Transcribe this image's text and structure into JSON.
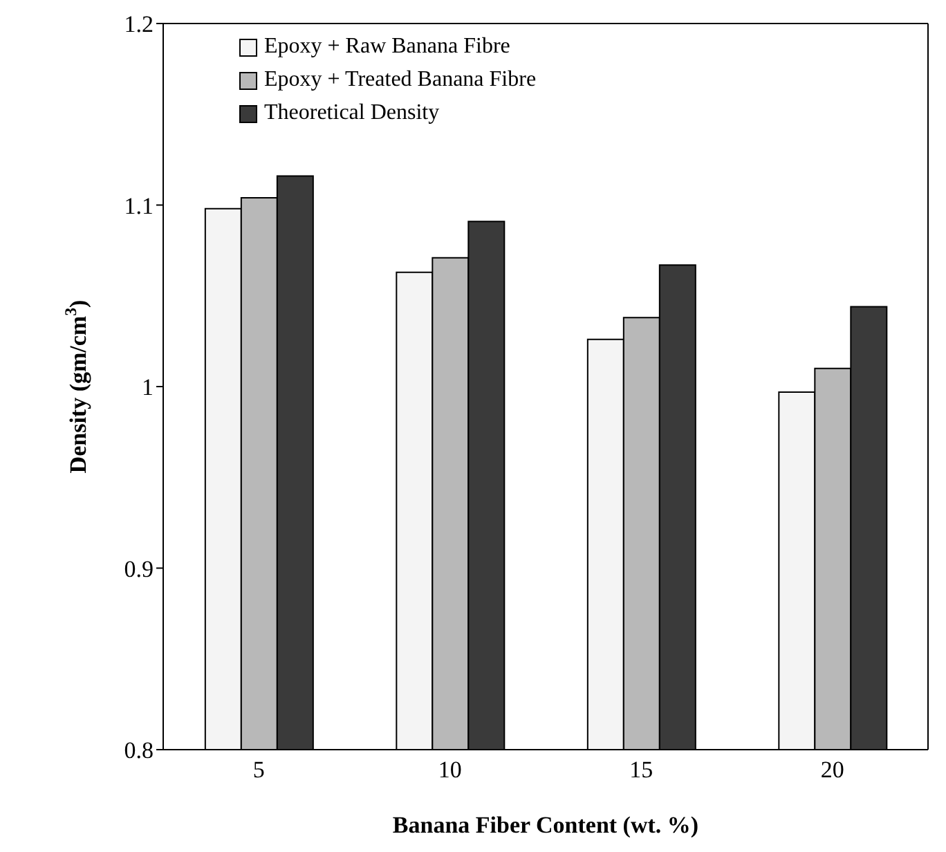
{
  "chart_data": {
    "type": "bar",
    "categories": [
      "5",
      "10",
      "15",
      "20"
    ],
    "series": [
      {
        "name": "Epoxy + Raw Banana Fibre",
        "color": "#f4f4f4",
        "values": [
          1.098,
          1.063,
          1.026,
          0.997
        ]
      },
      {
        "name": "Epoxy + Treated Banana Fibre",
        "color": "#b8b8b8",
        "values": [
          1.104,
          1.071,
          1.038,
          1.01
        ]
      },
      {
        "name": "Theoretical Density",
        "color": "#3a3a3a",
        "values": [
          1.116,
          1.091,
          1.067,
          1.044
        ]
      }
    ],
    "xlabel": "Banana Fiber Content (wt. %)",
    "ylabel": "Density (gm/cm$^{3}$)",
    "ylim": [
      0.8,
      1.2
    ],
    "yticks": [
      0.8,
      0.9,
      1,
      1.1,
      1.2
    ],
    "grid": false,
    "legend": "top left"
  }
}
